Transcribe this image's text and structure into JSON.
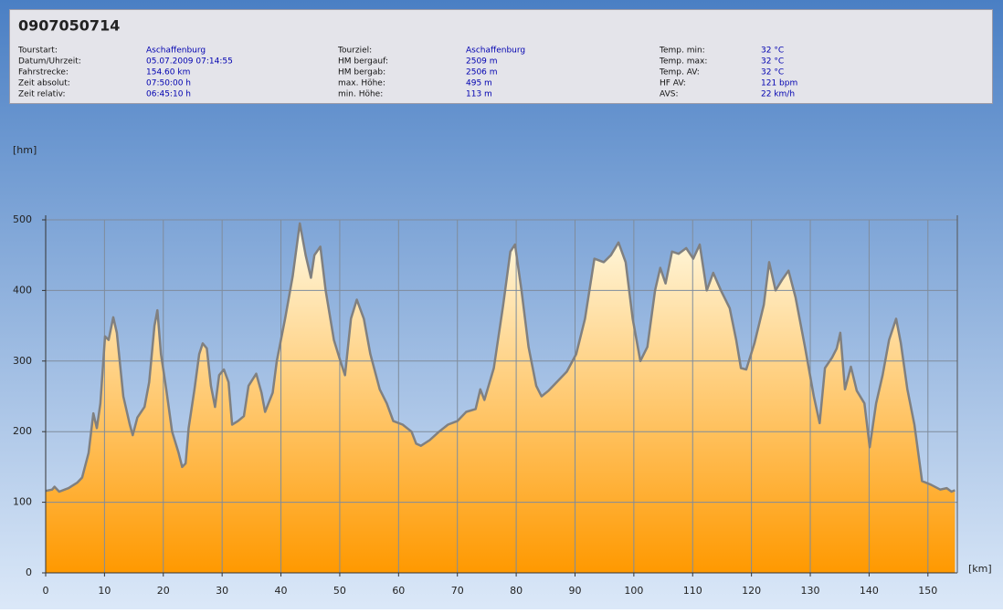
{
  "header": {
    "title": "0907050714",
    "columns": [
      [
        {
          "label": "Tourstart:",
          "value": "Aschaffenburg"
        },
        {
          "label": "Datum/Uhrzeit:",
          "value": "05.07.2009 07:14:55"
        },
        {
          "label": "Fahrstrecke:",
          "value": "154.60 km"
        },
        {
          "label": "Zeit absolut:",
          "value": "07:50:00 h"
        },
        {
          "label": "Zeit relativ:",
          "value": "06:45:10 h"
        }
      ],
      [
        {
          "label": "Tourziel:",
          "value": "Aschaffenburg"
        },
        {
          "label": "HM bergauf:",
          "value": "2509 m"
        },
        {
          "label": "HM bergab:",
          "value": "2506 m"
        },
        {
          "label": "max. Höhe:",
          "value": "495 m"
        },
        {
          "label": "min. Höhe:",
          "value": "113 m"
        }
      ],
      [
        {
          "label": "Temp. min:",
          "value": "32 °C"
        },
        {
          "label": "Temp. max:",
          "value": "32 °C"
        },
        {
          "label": "Temp. AV:",
          "value": "32 °C"
        },
        {
          "label": "HF AV:",
          "value": "121 bpm"
        },
        {
          "label": "AVS:",
          "value": "22 km/h"
        }
      ]
    ]
  },
  "chart_data": {
    "type": "area",
    "y_label": "[hm]",
    "x_label": "[km]",
    "x": [
      0,
      1.1,
      1.5,
      2.3,
      3.9,
      5.4,
      6.2,
      7.3,
      8.1,
      8.7,
      9.3,
      10.1,
      10.7,
      11.5,
      12.1,
      13.2,
      14.3,
      14.8,
      15.6,
      16.8,
      17.6,
      18.5,
      19.0,
      19.6,
      20.5,
      21.5,
      22.6,
      23.2,
      23.8,
      24.3,
      25.3,
      26.1,
      26.7,
      27.4,
      28.1,
      28.8,
      29.5,
      30.3,
      31.1,
      31.7,
      32.7,
      33.7,
      34.5,
      35.8,
      36.7,
      37.3,
      38.6,
      39.3,
      40.7,
      42.0,
      43.2,
      44.2,
      45.1,
      45.7,
      46.7,
      47.6,
      49.0,
      50.1,
      50.9,
      51.9,
      52.9,
      54.1,
      55.2,
      56.8,
      58.0,
      59.1,
      60.7,
      62.2,
      63.0,
      63.8,
      65.3,
      66.9,
      68.4,
      70.0,
      71.5,
      73.1,
      73.9,
      74.6,
      76.2,
      77.8,
      79.0,
      79.8,
      80.9,
      82.1,
      83.4,
      84.3,
      85.5,
      87.1,
      88.6,
      90.2,
      91.7,
      93.3,
      94.9,
      96.1,
      97.4,
      98.6,
      99.8,
      101.1,
      102.3,
      103.6,
      104.5,
      105.4,
      106.5,
      107.6,
      108.9,
      110.1,
      111.2,
      112.4,
      113.5,
      114.8,
      116.3,
      117.4,
      118.2,
      119.1,
      120.5,
      122.1,
      123.0,
      124.1,
      125.2,
      126.3,
      127.5,
      129.1,
      130.6,
      131.6,
      132.5,
      133.7,
      134.5,
      135.1,
      135.9,
      136.9,
      137.9,
      139.2,
      140.1,
      141.2,
      142.3,
      143.4,
      144.6,
      145.4,
      146.5,
      147.7,
      149.0,
      150.5,
      152.1,
      153.2,
      154.0,
      154.6
    ],
    "values": [
      116,
      118,
      122,
      115,
      120,
      128,
      135,
      170,
      226,
      205,
      240,
      335,
      330,
      362,
      340,
      250,
      210,
      195,
      220,
      235,
      270,
      350,
      372,
      310,
      260,
      200,
      170,
      150,
      155,
      205,
      260,
      310,
      325,
      318,
      265,
      235,
      280,
      288,
      270,
      210,
      215,
      222,
      265,
      282,
      255,
      228,
      255,
      300,
      360,
      420,
      495,
      450,
      418,
      450,
      462,
      400,
      330,
      300,
      280,
      360,
      387,
      360,
      310,
      260,
      240,
      215,
      210,
      200,
      183,
      180,
      188,
      200,
      210,
      215,
      228,
      232,
      260,
      245,
      290,
      380,
      455,
      465,
      400,
      320,
      265,
      250,
      258,
      272,
      285,
      310,
      360,
      445,
      440,
      450,
      468,
      440,
      360,
      300,
      320,
      400,
      432,
      410,
      455,
      452,
      460,
      445,
      465,
      400,
      425,
      400,
      375,
      330,
      290,
      288,
      325,
      380,
      440,
      400,
      415,
      428,
      390,
      320,
      250,
      212,
      290,
      305,
      318,
      340,
      260,
      292,
      258,
      240,
      178,
      240,
      280,
      330,
      360,
      325,
      260,
      210,
      130,
      125,
      118,
      120,
      115,
      117
    ],
    "color": "#808080",
    "fill_top": "#fffbe6",
    "fill_bottom": "#ff9900",
    "xlim": [
      0,
      155
    ],
    "xticks": [
      0,
      10,
      20,
      30,
      40,
      50,
      60,
      70,
      80,
      90,
      100,
      110,
      120,
      130,
      140,
      150
    ],
    "ylim": [
      0,
      500
    ],
    "yticks": [
      0,
      100,
      200,
      300,
      400,
      500
    ],
    "grid": true
  }
}
